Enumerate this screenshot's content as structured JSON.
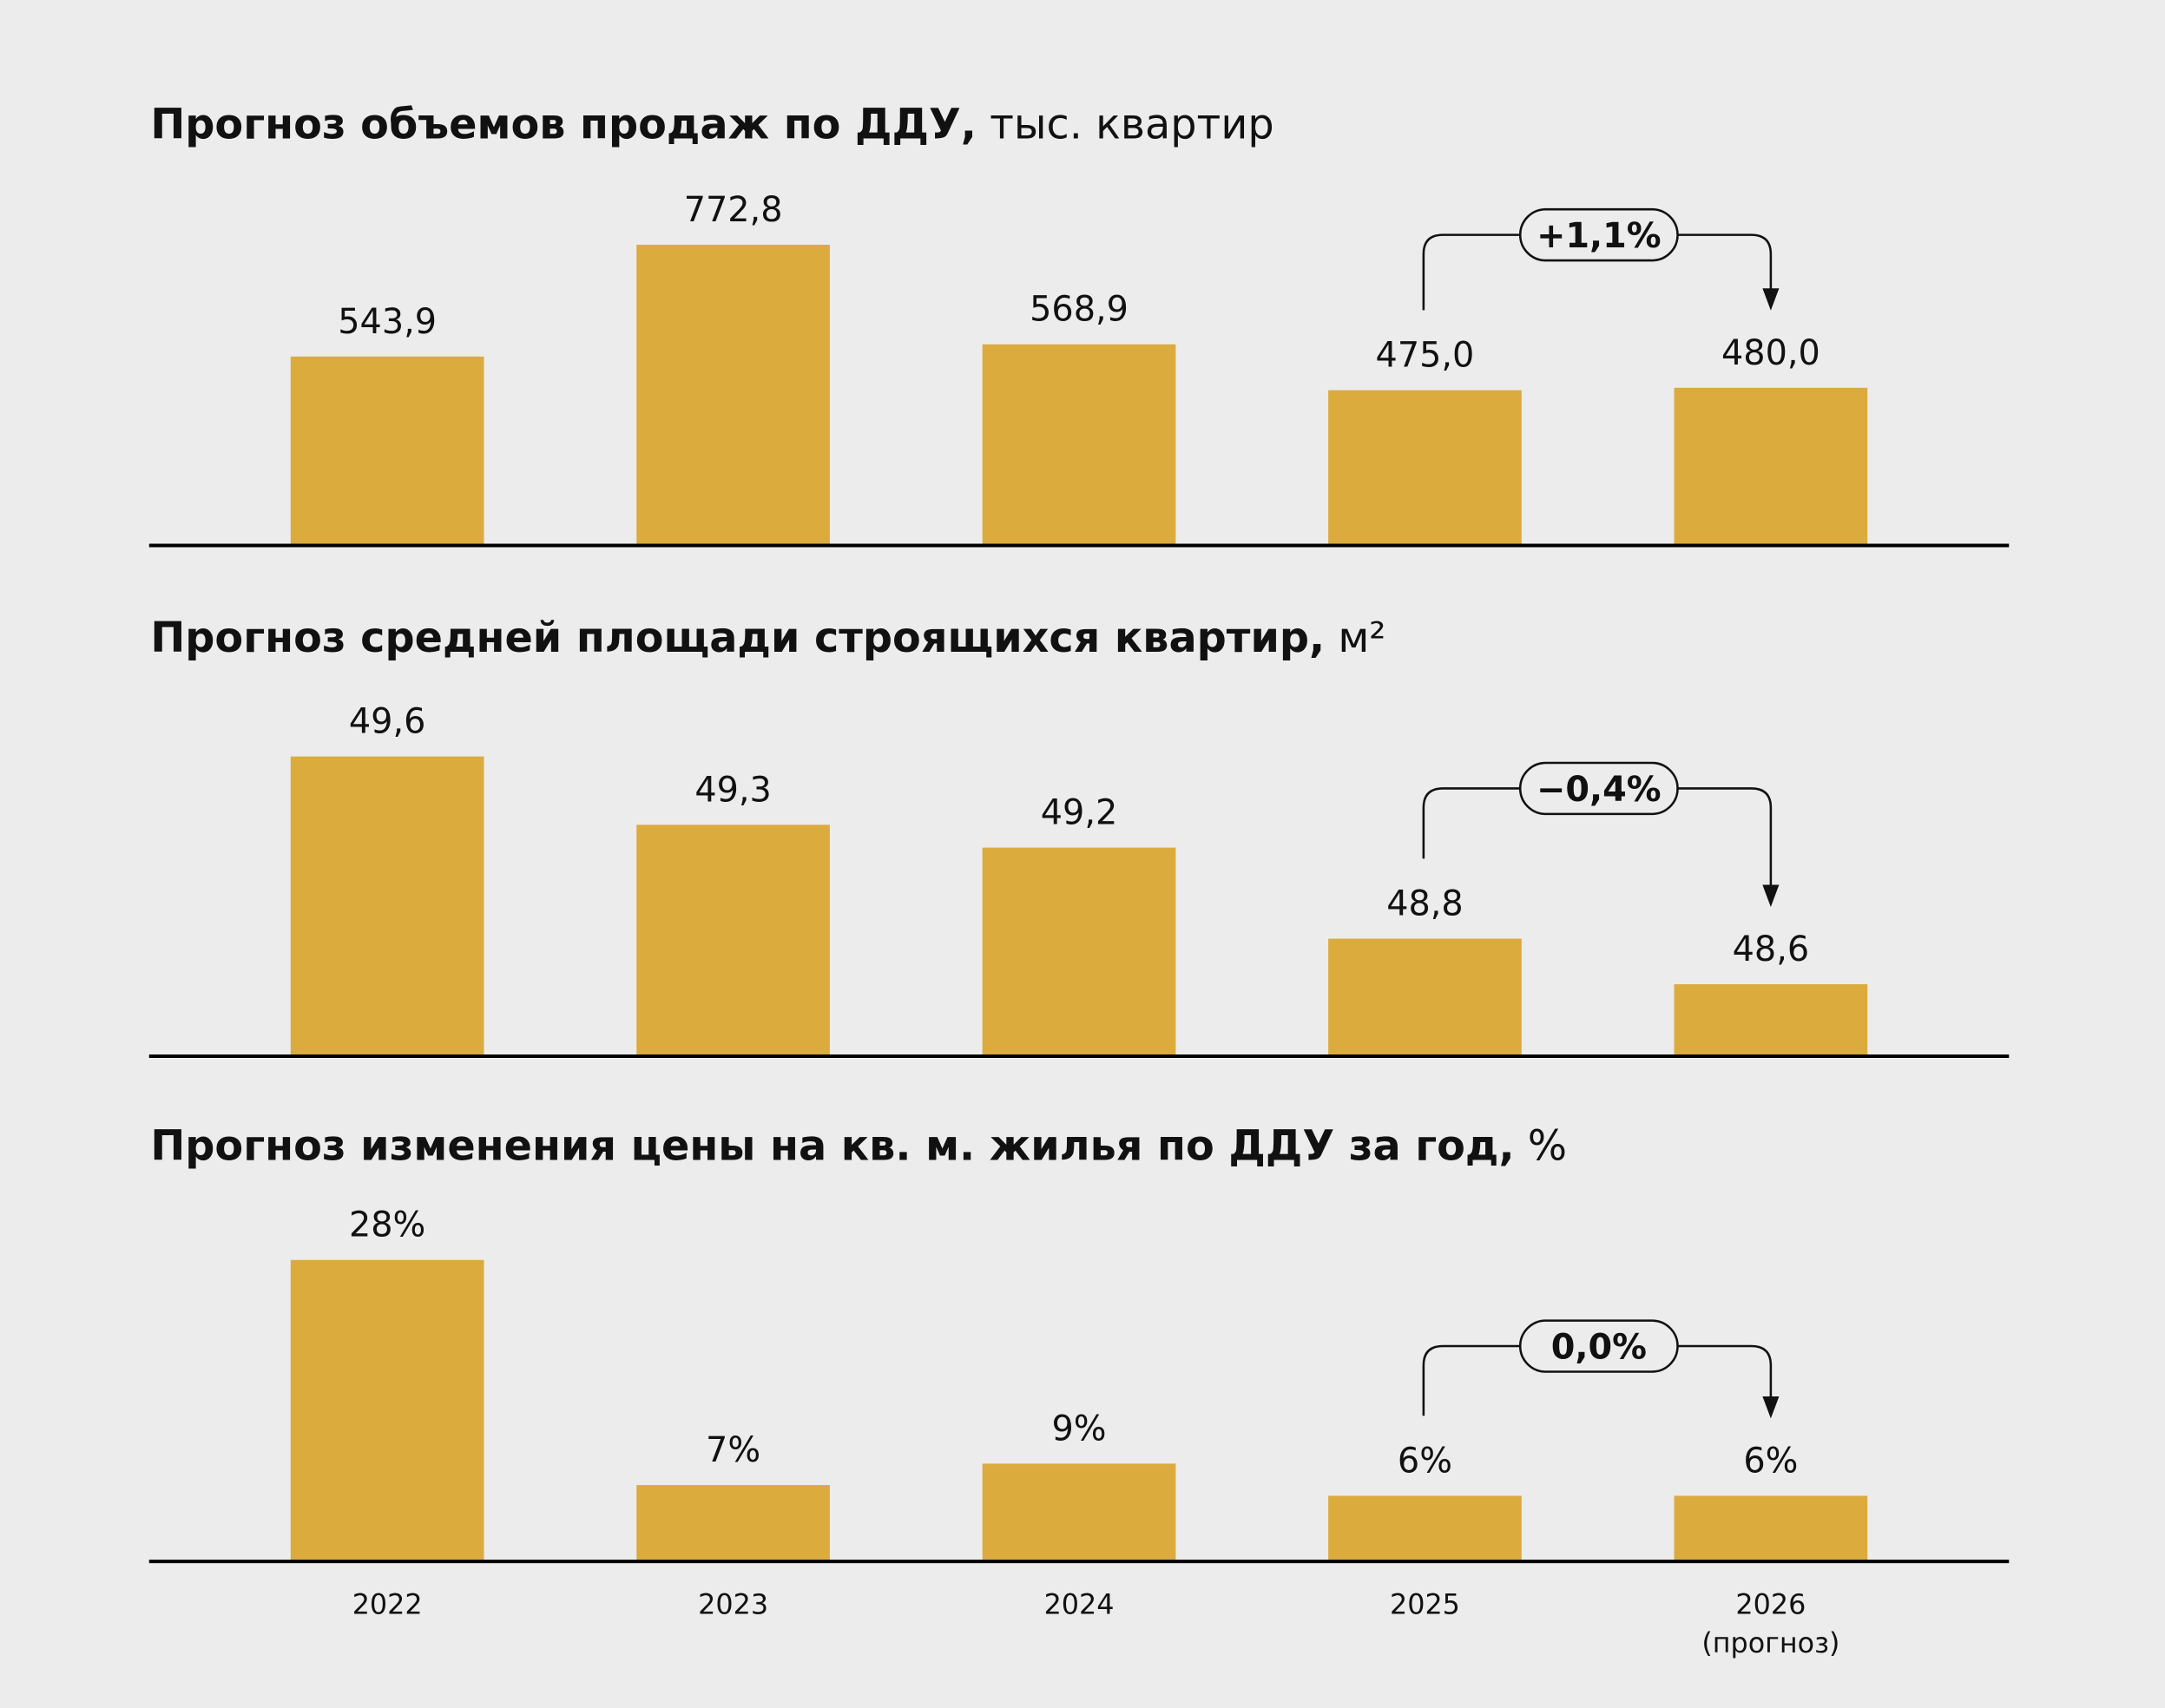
{
  "colors": {
    "bar": "#dbab3e",
    "background": "#ececec",
    "axis": "#000000"
  },
  "categories": [
    "2022",
    "2023",
    "2024",
    "2025",
    "2026"
  ],
  "category_note": "(прогноз)",
  "chart_data": [
    {
      "type": "bar",
      "title": "Прогноз объемов продаж по ДДУ,",
      "unit": "тыс. квартир",
      "categories": [
        "2022",
        "2023",
        "2024",
        "2025",
        "2026"
      ],
      "values": [
        543.9,
        772.8,
        568.9,
        475.0,
        480.0
      ],
      "labels": [
        "543,9",
        "772,8",
        "568,9",
        "475,0",
        "480,0"
      ],
      "ylim": [
        160,
        906
      ],
      "change": {
        "from": "2025",
        "to": "2026",
        "label": "+1,1%"
      }
    },
    {
      "type": "bar",
      "title": "Прогноз средней площади строящихся квартир,",
      "unit": "м²",
      "categories": [
        "2022",
        "2023",
        "2024",
        "2025",
        "2026"
      ],
      "values": [
        49.6,
        49.3,
        49.2,
        48.8,
        48.6
      ],
      "labels": [
        "49,6",
        "49,3",
        "49,2",
        "48,8",
        "48,6"
      ],
      "ylim": [
        48.29,
        49.89
      ],
      "change": {
        "from": "2025",
        "to": "2026",
        "label": "−0,4%"
      }
    },
    {
      "type": "bar",
      "title": "Прогноз изменения цены на кв. м. жилья по ДДУ за год,",
      "unit": "%",
      "categories": [
        "2022",
        "2023",
        "2024",
        "2025",
        "2026"
      ],
      "values": [
        28,
        7,
        9,
        6,
        6
      ],
      "labels": [
        "28%",
        "7%",
        "9%",
        "6%",
        "6%"
      ],
      "ylim": [
        0,
        34
      ],
      "change": {
        "from": "2025",
        "to": "2026",
        "label": "0,0%"
      }
    }
  ]
}
